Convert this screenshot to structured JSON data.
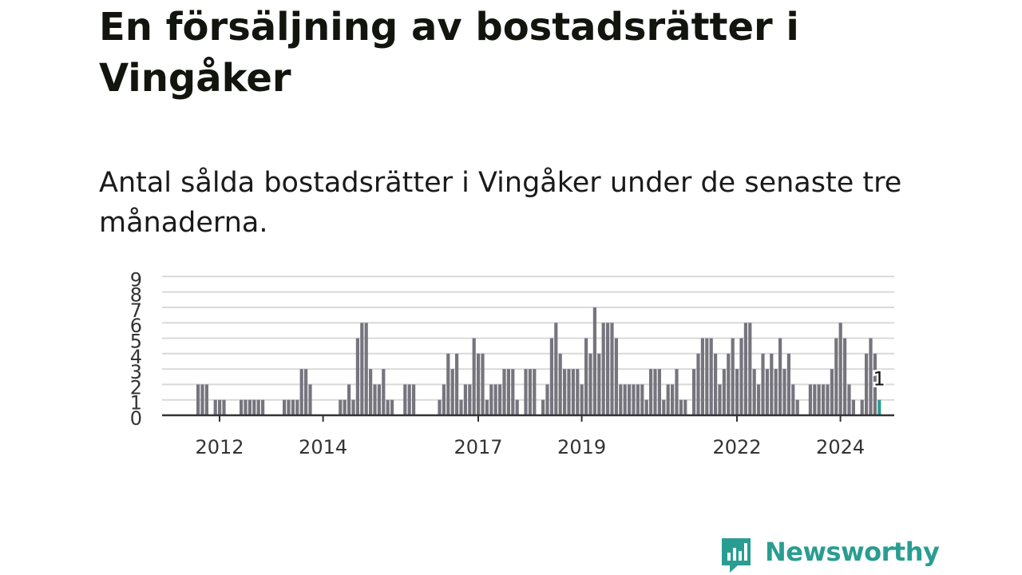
{
  "title": "En försäljning av bostadsrätter i Vingåker",
  "subtitle": "Antal sålda bostadsrätter i Vingåker under de senaste tre månaderna.",
  "brand": {
    "name": "Newsworthy",
    "color": "#2a9d92"
  },
  "colors": {
    "bar": "#76757e",
    "highlight": "#2a9d92",
    "grid": "#d9d9d9",
    "axis": "#333333"
  },
  "chart_data": {
    "type": "bar",
    "title": "",
    "xlabel": "",
    "ylabel": "",
    "ylim": [
      0,
      9
    ],
    "yticks": [
      "0",
      "1",
      "2",
      "3",
      "4",
      "5",
      "6",
      "7",
      "8",
      "9"
    ],
    "xticks": [
      "2012",
      "2014",
      "2017",
      "2019",
      "2022",
      "2024"
    ],
    "grid": true,
    "start": "2011-01",
    "values": [
      0,
      0,
      0,
      0,
      0,
      0,
      0,
      0,
      0,
      0,
      0,
      0,
      0,
      0,
      0,
      0,
      0,
      0,
      0,
      0,
      0,
      0,
      0,
      0,
      0,
      0,
      0,
      0,
      0,
      0,
      0,
      0,
      0,
      0,
      0,
      0,
      0,
      0,
      0,
      0,
      0,
      0,
      0,
      0,
      0,
      0,
      0,
      0,
      0,
      0,
      0,
      0,
      0,
      0,
      0,
      0,
      0,
      0,
      0,
      0,
      0,
      0,
      0,
      0,
      0,
      0,
      0,
      0,
      0,
      0,
      0,
      0,
      0,
      0,
      0,
      0,
      0,
      0,
      0,
      0,
      0,
      0,
      0,
      0,
      0,
      0,
      0,
      0,
      0,
      0,
      0,
      0,
      0,
      0,
      0,
      0,
      0,
      0,
      0,
      0,
      0,
      0,
      0,
      0,
      0,
      0,
      0,
      0,
      0,
      0,
      0,
      0,
      0,
      0,
      0,
      0,
      0,
      0,
      0,
      0,
      0,
      0,
      0,
      0,
      0,
      0,
      0,
      0,
      0,
      0,
      0,
      0,
      0,
      0,
      0,
      0,
      0,
      0,
      0,
      0,
      0,
      0,
      0,
      0,
      0,
      0,
      0,
      0,
      0,
      0,
      0,
      0,
      0,
      0,
      0,
      0,
      0,
      0,
      0,
      0,
      0,
      0,
      0,
      0,
      0,
      0,
      0,
      0
    ],
    "series": [
      {
        "values": [
          2,
          2,
          2,
          0,
          1,
          1,
          1,
          0,
          0,
          0,
          1,
          1,
          1,
          1,
          1,
          1,
          0,
          0,
          0,
          0,
          1,
          1,
          1,
          1,
          3,
          3,
          2,
          0,
          0,
          0,
          0,
          0,
          0,
          1,
          1,
          2,
          1,
          5,
          6,
          6,
          3,
          2,
          2,
          3,
          1,
          1,
          0,
          0,
          2,
          2,
          2,
          0,
          0,
          0,
          0,
          0,
          1,
          2,
          4,
          3,
          4,
          1,
          2,
          2,
          5,
          4,
          4,
          1,
          2,
          2,
          2,
          3,
          3,
          3,
          1,
          0,
          3,
          3,
          3,
          0,
          1,
          2,
          5,
          6,
          4,
          3,
          3,
          3,
          3,
          2,
          5,
          4,
          7,
          4,
          6,
          6,
          6,
          5,
          2,
          2,
          2,
          2,
          2,
          2,
          1,
          3,
          3,
          3,
          1,
          2,
          2,
          3,
          1,
          1,
          0,
          3,
          4,
          5,
          5,
          5,
          4,
          2,
          3,
          4,
          5,
          3,
          5,
          6,
          6,
          3,
          2,
          4,
          3,
          4,
          3,
          5,
          3,
          4,
          2,
          1,
          0,
          0,
          2,
          2,
          2,
          2,
          2,
          3,
          5,
          6,
          5,
          2,
          1,
          0,
          1,
          4,
          5,
          4,
          1
        ]
      }
    ],
    "highlight_index": 158,
    "highlight_label": "1"
  }
}
